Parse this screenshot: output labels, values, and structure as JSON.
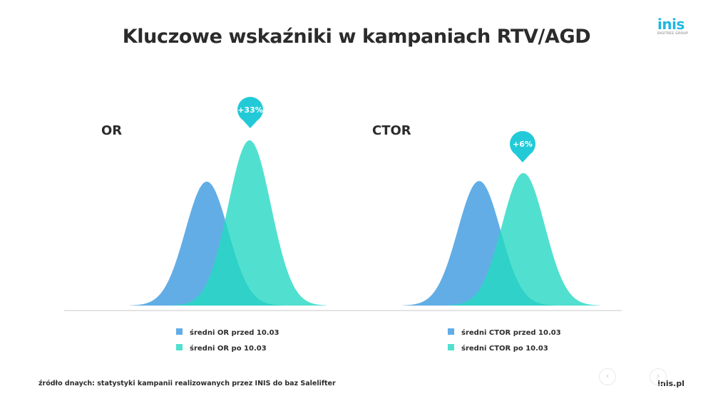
{
  "title": "Kluczowe wskaźniki w kampaniach RTV/AGD",
  "logo": {
    "word": "inis",
    "subtitle": "DIGITREE GROUP"
  },
  "colors": {
    "before": "#62ade6",
    "after": "#51e0cf",
    "overlap": "#2fd1c8",
    "badge": "#22cad8",
    "axis": "#e4e4e4"
  },
  "chart_data": [
    {
      "type": "area",
      "title": "OR",
      "change_label": "+33%",
      "series": [
        {
          "name": "średni OR przed 10.03",
          "relative_height": 0.75
        },
        {
          "name": "średni OR po 10.03",
          "relative_height": 1.0
        }
      ],
      "legend_position": "bottom"
    },
    {
      "type": "area",
      "title": "CTOR",
      "change_label": "+6%",
      "series": [
        {
          "name": "średni CTOR przed 10.03",
          "relative_height": 0.94
        },
        {
          "name": "średni CTOR po 10.03",
          "relative_height": 1.0
        }
      ],
      "legend_position": "bottom"
    }
  ],
  "footer": {
    "source": "źródło dnaych: statystyki kampanii realizowanych przez INIS do baz Salelifter",
    "site": "inis.pl"
  },
  "nav": {
    "prev_icon": "chevron-left-icon",
    "next_icon": "chevron-right-icon"
  }
}
